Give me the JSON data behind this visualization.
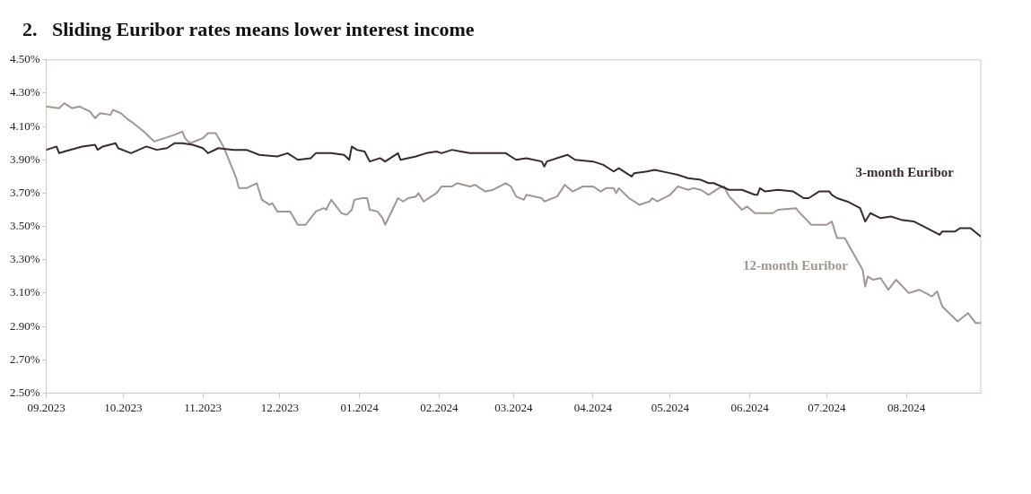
{
  "chart_data": {
    "type": "line",
    "title": "2.   Sliding Euribor rates means lower interest income",
    "xlim": [
      "2023-09-01",
      "2024-08-30"
    ],
    "xticks": [
      {
        "value": "2023-09-01",
        "label": "09.2023"
      },
      {
        "value": "2023-10-01",
        "label": "10.2023"
      },
      {
        "value": "2023-11-01",
        "label": "11.2023"
      },
      {
        "value": "2023-12-01",
        "label": "12.2023"
      },
      {
        "value": "2024-01-01",
        "label": "01.2024"
      },
      {
        "value": "2024-02-01",
        "label": "02.2024"
      },
      {
        "value": "2024-03-01",
        "label": "03.2024"
      },
      {
        "value": "2024-04-01",
        "label": "04.2024"
      },
      {
        "value": "2024-05-01",
        "label": "05.2024"
      },
      {
        "value": "2024-06-01",
        "label": "06.2024"
      },
      {
        "value": "2024-07-01",
        "label": "07.2024"
      },
      {
        "value": "2024-08-01",
        "label": "08.2024"
      }
    ],
    "ylim": [
      2.5,
      4.5
    ],
    "yticks": [
      {
        "value": 2.5,
        "label": "2.50%"
      },
      {
        "value": 2.7,
        "label": "2.70%"
      },
      {
        "value": 2.9,
        "label": "2.90%"
      },
      {
        "value": 3.1,
        "label": "3.10%"
      },
      {
        "value": 3.3,
        "label": "3.30%"
      },
      {
        "value": 3.5,
        "label": "3.50%"
      },
      {
        "value": 3.7,
        "label": "3.70%"
      },
      {
        "value": 3.9,
        "label": "3.90%"
      },
      {
        "value": 4.1,
        "label": "4.10%"
      },
      {
        "value": 4.3,
        "label": "4.30%"
      },
      {
        "value": 4.5,
        "label": "4.50%"
      }
    ],
    "grid": false,
    "legend": false,
    "marker": "none",
    "line_style": "solid",
    "series": [
      {
        "name": "3-month Euribor",
        "color": "#3a2a2c",
        "x": [
          "2023-09-01",
          "2023-09-05",
          "2023-09-06",
          "2023-09-08",
          "2023-09-15",
          "2023-09-20",
          "2023-09-21",
          "2023-09-23",
          "2023-09-28",
          "2023-09-29",
          "2023-10-04",
          "2023-10-10",
          "2023-10-14",
          "2023-10-18",
          "2023-10-21",
          "2023-10-24",
          "2023-10-28",
          "2023-11-01",
          "2023-11-03",
          "2023-11-07",
          "2023-11-13",
          "2023-11-18",
          "2023-11-23",
          "2023-11-30",
          "2023-12-04",
          "2023-12-08",
          "2023-12-13",
          "2023-12-15",
          "2023-12-21",
          "2023-12-26",
          "2023-12-28",
          "2023-12-29",
          "2023-12-31",
          "2024-01-03",
          "2024-01-05",
          "2024-01-09",
          "2024-01-11",
          "2024-01-16",
          "2024-01-17",
          "2024-01-23",
          "2024-01-27",
          "2024-01-31",
          "2024-02-02",
          "2024-02-06",
          "2024-02-13",
          "2024-02-20",
          "2024-02-27",
          "2024-03-02",
          "2024-03-06",
          "2024-03-12",
          "2024-03-13",
          "2024-03-14",
          "2024-03-20",
          "2024-03-22",
          "2024-03-25",
          "2024-04-01",
          "2024-04-05",
          "2024-04-09",
          "2024-04-11",
          "2024-04-16",
          "2024-04-17",
          "2024-04-22",
          "2024-04-25",
          "2024-05-01",
          "2024-05-04",
          "2024-05-08",
          "2024-05-13",
          "2024-05-16",
          "2024-05-18",
          "2024-05-21",
          "2024-05-24",
          "2024-05-29",
          "2024-06-03",
          "2024-06-04",
          "2024-06-05",
          "2024-06-07",
          "2024-06-12",
          "2024-06-18",
          "2024-06-22",
          "2024-06-24",
          "2024-06-28",
          "2024-07-02",
          "2024-07-03",
          "2024-07-05",
          "2024-07-09",
          "2024-07-14",
          "2024-07-15",
          "2024-07-16",
          "2024-07-18",
          "2024-07-22",
          "2024-07-26",
          "2024-07-30",
          "2024-08-04",
          "2024-08-09",
          "2024-08-14",
          "2024-08-15",
          "2024-08-20",
          "2024-08-22",
          "2024-08-26",
          "2024-08-30"
        ],
        "values": [
          3.96,
          3.98,
          3.94,
          3.95,
          3.98,
          3.99,
          3.96,
          3.98,
          4.0,
          3.97,
          3.94,
          3.98,
          3.96,
          3.97,
          4.0,
          4.0,
          3.99,
          3.97,
          3.94,
          3.97,
          3.96,
          3.96,
          3.93,
          3.92,
          3.94,
          3.9,
          3.91,
          3.94,
          3.94,
          3.93,
          3.9,
          3.98,
          3.96,
          3.95,
          3.89,
          3.91,
          3.89,
          3.94,
          3.9,
          3.92,
          3.94,
          3.95,
          3.94,
          3.96,
          3.94,
          3.94,
          3.94,
          3.9,
          3.91,
          3.89,
          3.86,
          3.89,
          3.92,
          3.93,
          3.9,
          3.89,
          3.87,
          3.83,
          3.85,
          3.8,
          3.82,
          3.83,
          3.84,
          3.82,
          3.81,
          3.79,
          3.78,
          3.76,
          3.76,
          3.74,
          3.72,
          3.72,
          3.69,
          3.69,
          3.73,
          3.71,
          3.72,
          3.71,
          3.67,
          3.67,
          3.71,
          3.71,
          3.69,
          3.67,
          3.65,
          3.61,
          3.57,
          3.53,
          3.58,
          3.55,
          3.56,
          3.54,
          3.53,
          3.49,
          3.45,
          3.47,
          3.47,
          3.49,
          3.49,
          3.44
        ]
      },
      {
        "name": "12-month Euribor",
        "color": "#a39590",
        "x": [
          "2023-09-01",
          "2023-09-06",
          "2023-09-08",
          "2023-09-11",
          "2023-09-14",
          "2023-09-18",
          "2023-09-20",
          "2023-09-22",
          "2023-09-26",
          "2023-09-27",
          "2023-09-30",
          "2023-10-03",
          "2023-10-05",
          "2023-10-09",
          "2023-10-11",
          "2023-10-13",
          "2023-10-17",
          "2023-10-21",
          "2023-10-24",
          "2023-10-25",
          "2023-10-27",
          "2023-11-01",
          "2023-11-03",
          "2023-11-06",
          "2023-11-09",
          "2023-11-14",
          "2023-11-15",
          "2023-11-18",
          "2023-11-22",
          "2023-11-24",
          "2023-11-27",
          "2023-11-28",
          "2023-11-30",
          "2023-12-05",
          "2023-12-08",
          "2023-12-11",
          "2023-12-15",
          "2023-12-18",
          "2023-12-19",
          "2023-12-21",
          "2023-12-25",
          "2023-12-27",
          "2023-12-29",
          "2023-12-30",
          "2024-01-02",
          "2024-01-04",
          "2024-01-05",
          "2024-01-08",
          "2024-01-10",
          "2024-01-11",
          "2024-01-16",
          "2024-01-18",
          "2024-01-20",
          "2024-01-23",
          "2024-01-24",
          "2024-01-26",
          "2024-01-31",
          "2024-02-02",
          "2024-02-06",
          "2024-02-08",
          "2024-02-13",
          "2024-02-15",
          "2024-02-19",
          "2024-02-22",
          "2024-02-27",
          "2024-02-29",
          "2024-03-02",
          "2024-03-05",
          "2024-03-06",
          "2024-03-12",
          "2024-03-13",
          "2024-03-18",
          "2024-03-21",
          "2024-03-24",
          "2024-03-28",
          "2024-04-01",
          "2024-04-04",
          "2024-04-06",
          "2024-04-09",
          "2024-04-10",
          "2024-04-11",
          "2024-04-15",
          "2024-04-19",
          "2024-04-23",
          "2024-04-24",
          "2024-04-26",
          "2024-05-01",
          "2024-05-04",
          "2024-05-08",
          "2024-05-10",
          "2024-05-13",
          "2024-05-16",
          "2024-05-20",
          "2024-05-22",
          "2024-05-24",
          "2024-05-29",
          "2024-05-31",
          "2024-06-03",
          "2024-06-10",
          "2024-06-12",
          "2024-06-19",
          "2024-06-20",
          "2024-06-25",
          "2024-07-01",
          "2024-07-03",
          "2024-07-05",
          "2024-07-08",
          "2024-07-15",
          "2024-07-16",
          "2024-07-17",
          "2024-07-19",
          "2024-07-22",
          "2024-07-25",
          "2024-07-28",
          "2024-08-02",
          "2024-08-06",
          "2024-08-11",
          "2024-08-13",
          "2024-08-15",
          "2024-08-21",
          "2024-08-25",
          "2024-08-28",
          "2024-08-30"
        ],
        "values": [
          4.22,
          4.21,
          4.24,
          4.21,
          4.22,
          4.19,
          4.15,
          4.18,
          4.17,
          4.2,
          4.18,
          4.14,
          4.12,
          4.07,
          4.04,
          4.01,
          4.03,
          4.05,
          4.07,
          4.03,
          4.0,
          4.03,
          4.06,
          4.06,
          3.98,
          3.79,
          3.73,
          3.73,
          3.76,
          3.66,
          3.63,
          3.64,
          3.59,
          3.59,
          3.51,
          3.51,
          3.59,
          3.61,
          3.6,
          3.66,
          3.58,
          3.57,
          3.6,
          3.66,
          3.67,
          3.67,
          3.6,
          3.59,
          3.55,
          3.51,
          3.67,
          3.65,
          3.67,
          3.68,
          3.7,
          3.65,
          3.7,
          3.74,
          3.74,
          3.76,
          3.74,
          3.75,
          3.71,
          3.72,
          3.76,
          3.74,
          3.68,
          3.66,
          3.69,
          3.67,
          3.65,
          3.68,
          3.75,
          3.71,
          3.74,
          3.74,
          3.71,
          3.73,
          3.73,
          3.7,
          3.73,
          3.67,
          3.63,
          3.65,
          3.67,
          3.65,
          3.69,
          3.74,
          3.72,
          3.73,
          3.72,
          3.69,
          3.73,
          3.74,
          3.68,
          3.6,
          3.62,
          3.58,
          3.58,
          3.6,
          3.61,
          3.59,
          3.51,
          3.51,
          3.53,
          3.43,
          3.43,
          3.24,
          3.14,
          3.2,
          3.18,
          3.19,
          3.12,
          3.18,
          3.1,
          3.12,
          3.08,
          3.11,
          3.02,
          2.93,
          2.98,
          2.92,
          2.92
        ]
      }
    ]
  }
}
